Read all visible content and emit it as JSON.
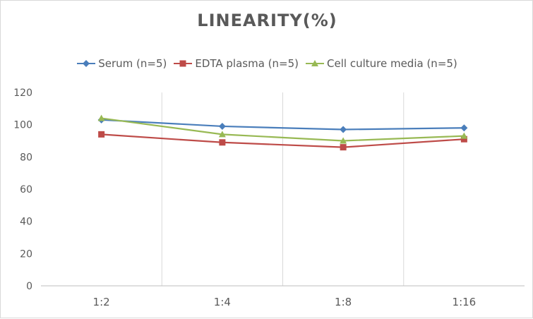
{
  "chart_data": {
    "type": "line",
    "title": "LINEARITY(%)",
    "categories": [
      "1:2",
      "1:4",
      "1:8",
      "1:16"
    ],
    "ylim": [
      0,
      120
    ],
    "yticks": [
      0,
      20,
      40,
      60,
      80,
      100,
      120
    ],
    "grid": "vertical",
    "legend_position": "top",
    "series": [
      {
        "name": "Serum (n=5)",
        "color": "#4a7ebb",
        "marker": "diamond",
        "values": [
          103,
          99,
          97,
          98
        ]
      },
      {
        "name": "EDTA plasma (n=5)",
        "color": "#be4b48",
        "marker": "square",
        "values": [
          94,
          89,
          86,
          91
        ]
      },
      {
        "name": "Cell culture media (n=5)",
        "color": "#98b954",
        "marker": "triangle",
        "values": [
          104,
          94,
          90,
          93
        ]
      }
    ]
  }
}
